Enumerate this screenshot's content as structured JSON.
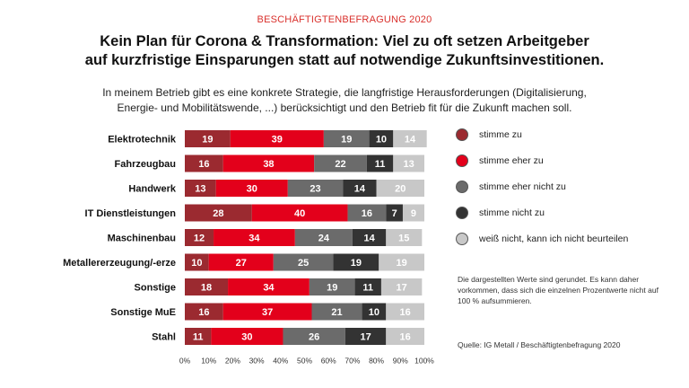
{
  "header": {
    "kicker": "BESCHÄFTIGTENBEFRAGUNG 2020",
    "title_line1": "Kein Plan für Corona & Transformation: Viel zu oft setzen Arbeitgeber",
    "title_line2": "auf kurzfristige Einsparungen statt auf notwendige Zukunftsinvestitionen.",
    "subtitle_line1": "In meinem Betrieb gibt es eine konkrete Strategie, die langfristige Herausforderungen (Digitalisierung,",
    "subtitle_line2": "Energie- und Mobilitätswende, ...) berücksichtigt und den Betrieb fit für die Zukunft machen soll."
  },
  "chart_data": {
    "type": "bar",
    "orientation": "horizontal",
    "stacked": true,
    "categories": [
      "Elektrotechnik",
      "Fahrzeugbau",
      "Handwerk",
      "IT Dienstleistungen",
      "Maschinenbau",
      "Metallererzeugung/-erze",
      "Sonstige",
      "Sonstige MuE",
      "Stahl"
    ],
    "series": [
      {
        "name": "stimme zu",
        "color": "#9b2a30",
        "values": [
          19,
          16,
          13,
          28,
          12,
          10,
          18,
          16,
          11
        ]
      },
      {
        "name": "stimme eher zu",
        "color": "#e3001b",
        "values": [
          39,
          38,
          30,
          40,
          34,
          27,
          34,
          37,
          30
        ]
      },
      {
        "name": "stimme eher nicht zu",
        "color": "#6b6b6b",
        "values": [
          19,
          22,
          23,
          16,
          24,
          25,
          19,
          21,
          26
        ]
      },
      {
        "name": "stimme nicht zu",
        "color": "#333333",
        "values": [
          10,
          11,
          14,
          7,
          14,
          19,
          11,
          10,
          17
        ]
      },
      {
        "name": "weiß nicht, kann ich nicht beurteilen",
        "color": "#c8c8c8",
        "values": [
          14,
          13,
          20,
          9,
          15,
          19,
          17,
          16,
          16
        ]
      }
    ],
    "xlim": [
      0,
      100
    ],
    "x_ticks": [
      "0%",
      "10%",
      "20%",
      "30%",
      "40%",
      "50%",
      "60%",
      "70%",
      "80%",
      "90%",
      "100%"
    ],
    "grid": false,
    "legend_position": "right"
  },
  "note": "Die dargestellten Werte sind gerundet. Es kann daher vorkommen, dass sich die einzelnen Prozentwerte nicht auf 100 % aufsummieren.",
  "source": "Quelle: IG Metall / Beschäftigtenbefragung 2020"
}
